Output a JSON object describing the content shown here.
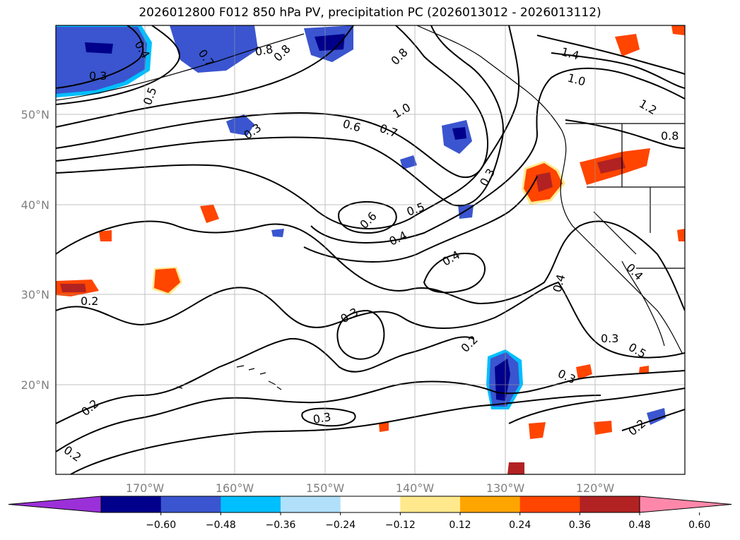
{
  "title": "2026012800 F012 850 hPa PV, precipitation PC (2026013012 - 2026013112)",
  "lon_labels": [
    "170°W",
    "160°W",
    "150°W",
    "140°W",
    "130°W",
    "120°W"
  ],
  "lat_labels": [
    "50°N",
    "40°N",
    "30°N",
    "20°N"
  ],
  "contour_labels": [
    "0.3",
    "0.4",
    "0.5",
    "0.7",
    "0.8",
    "0.8",
    "0.3",
    "0.6",
    "0.7",
    "1.0",
    "0.8",
    "1.4",
    "1.0",
    "1.2",
    "0.8",
    "0.3",
    "0.6",
    "0.5",
    "0.4",
    "0.4",
    "0.3",
    "0.2",
    "0.4",
    "0.4",
    "0.5",
    "0.3",
    "0.2",
    "0.2",
    "0.3",
    "0.2",
    "0.2",
    "0.3"
  ],
  "colorbar": {
    "ticks": [
      "−0.60",
      "−0.48",
      "−0.36",
      "−0.24",
      "−0.12",
      "0.12",
      "0.24",
      "0.36",
      "0.48",
      "0.60"
    ],
    "colors": [
      "#9b30d9",
      "#00008b",
      "#3a55cf",
      "#00bfff",
      "#b0e0fa",
      "#ffffff",
      "#ffe98c",
      "#ffa500",
      "#ff4500",
      "#b22222",
      "#ff88aa"
    ]
  }
}
